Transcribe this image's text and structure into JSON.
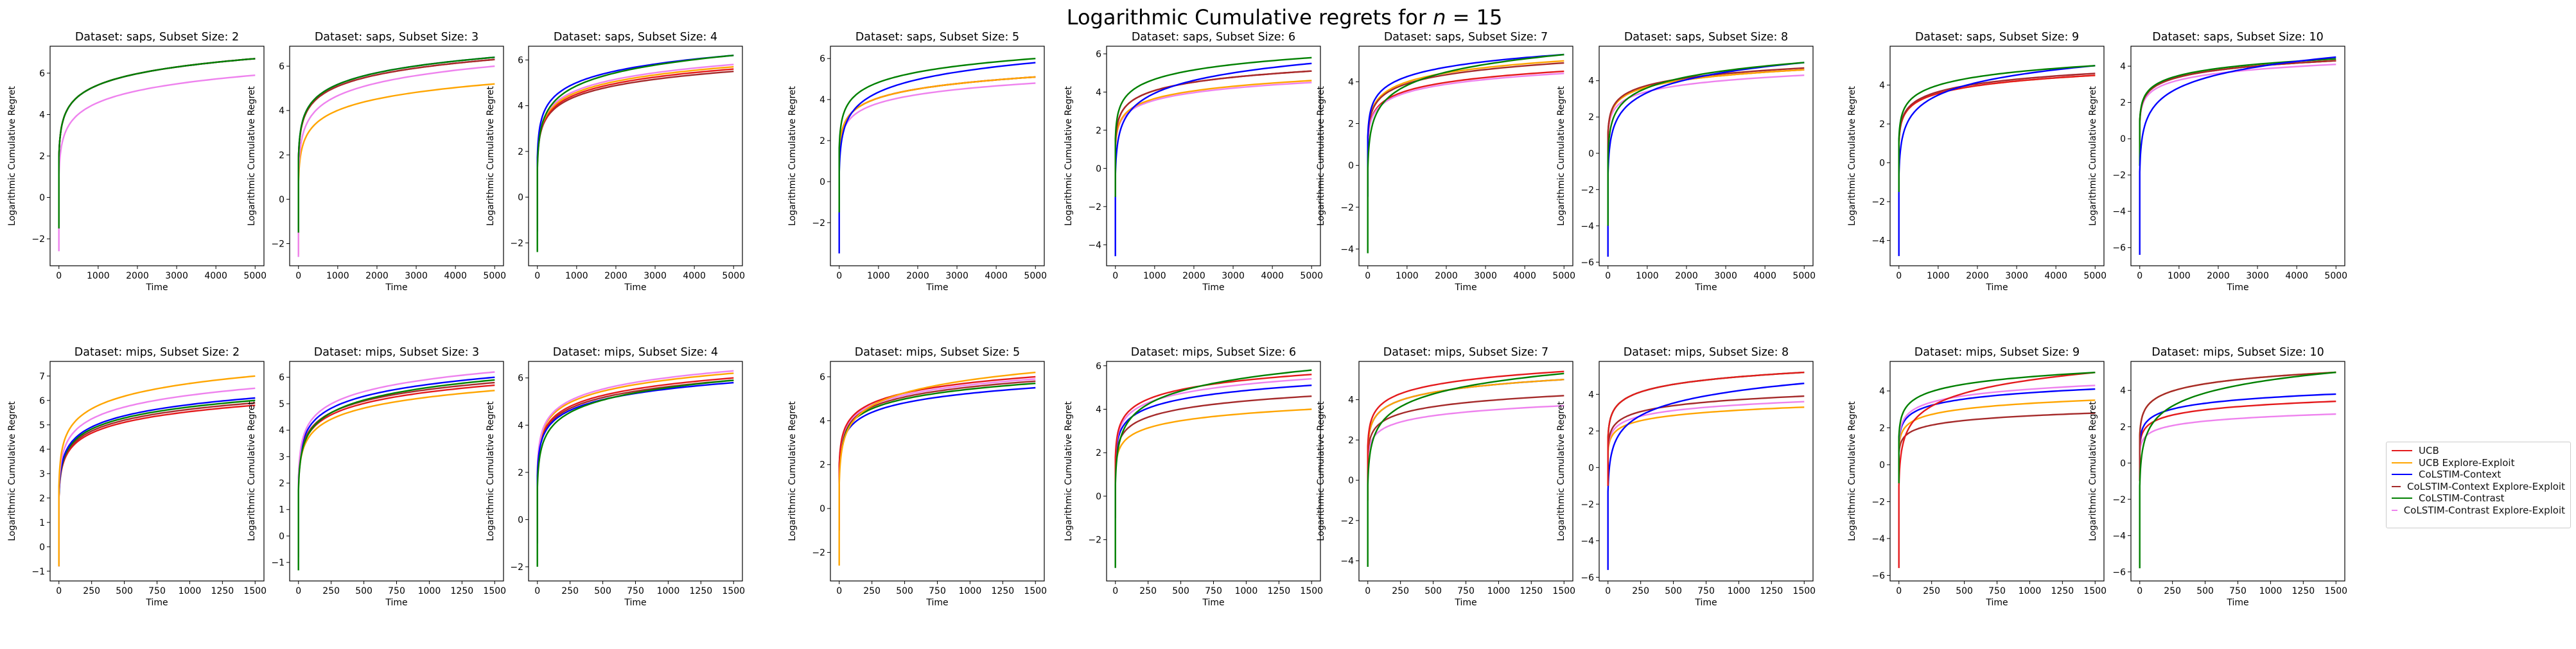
{
  "figure": {
    "title_prefix": "Logarithmic Cumulative regrets for ",
    "title_var": "n",
    "title_suffix": " = 15"
  },
  "legend": {
    "placement": "right",
    "entries": [
      {
        "key": "ucb",
        "label": "UCB",
        "color": "#e41a1c"
      },
      {
        "key": "ucb_ee",
        "label": "UCB Explore-Exploit",
        "color": "#ffa500"
      },
      {
        "key": "col_ctx",
        "label": "CoLSTIM-Context",
        "color": "#0000ff"
      },
      {
        "key": "col_ctx_ee",
        "label": "CoLSTIM-Context Explore-Exploit",
        "color": "#a52a2a"
      },
      {
        "key": "col_con",
        "label": "CoLSTIM-Contrast",
        "color": "#008000"
      },
      {
        "key": "col_con_ee",
        "label": "CoLSTIM-Contrast Explore-Exploit",
        "color": "#ee82ee"
      }
    ]
  },
  "chart_data": [
    {
      "type": "line",
      "title": "Dataset: saps, Subset Size: 2",
      "xlabel": "Time",
      "ylabel": "Logarithmic Cumulative Regret",
      "xlim": [
        0,
        5000
      ],
      "ylim": [
        -3.3,
        7.3
      ],
      "xticks": [
        0,
        1000,
        2000,
        3000,
        4000,
        5000
      ],
      "yticks": [
        -2,
        0,
        2,
        4,
        6
      ],
      "series": [
        {
          "key": "ucb",
          "end": 6.7,
          "start": -1.5
        },
        {
          "key": "ucb_ee",
          "end": 6.7,
          "start": -1.5
        },
        {
          "key": "col_ctx",
          "end": 6.7,
          "start": -1.5
        },
        {
          "key": "col_ctx_ee",
          "end": 6.7,
          "start": -1.5
        },
        {
          "key": "col_con_ee",
          "end": 5.9,
          "start": -2.6
        },
        {
          "key": "col_con",
          "end": 6.7,
          "start": -1.5
        }
      ]
    },
    {
      "type": "line",
      "title": "Dataset: saps, Subset Size: 3",
      "xlabel": "Time",
      "ylabel": "Logarithmic Cumulative Regret",
      "xlim": [
        0,
        5000
      ],
      "ylim": [
        -3.0,
        6.9
      ],
      "xticks": [
        0,
        1000,
        2000,
        3000,
        4000,
        5000
      ],
      "yticks": [
        -2,
        0,
        2,
        4,
        6
      ],
      "series": [
        {
          "key": "ucb_ee",
          "end": 5.2,
          "start": -2.5
        },
        {
          "key": "col_con_ee",
          "end": 6.0,
          "start": -2.6
        },
        {
          "key": "ucb",
          "end": 6.3,
          "start": -1.5
        },
        {
          "key": "col_ctx",
          "end": 6.4,
          "start": -1.5
        },
        {
          "key": "col_ctx_ee",
          "end": 6.3,
          "start": -1.5
        },
        {
          "key": "col_con",
          "end": 6.4,
          "start": -1.5
        }
      ]
    },
    {
      "type": "line",
      "title": "Dataset: saps, Subset Size: 4",
      "xlabel": "Time",
      "ylabel": "Logarithmic Cumulative Regret",
      "xlim": [
        0,
        5000
      ],
      "ylim": [
        -3.0,
        6.6
      ],
      "xticks": [
        0,
        1000,
        2000,
        3000,
        4000,
        5000
      ],
      "yticks": [
        -2,
        0,
        2,
        4,
        6
      ],
      "series": [
        {
          "key": "col_ctx_ee",
          "end": 5.5,
          "start": -1.5
        },
        {
          "key": "ucb",
          "end": 5.6,
          "start": -1.5
        },
        {
          "key": "ucb_ee",
          "end": 5.7,
          "start": -1.5
        },
        {
          "key": "col_con_ee",
          "end": 5.8,
          "start": -1.5
        },
        {
          "key": "col_ctx",
          "end": 6.2,
          "start": -1.5
        },
        {
          "key": "col_con",
          "end": 6.2,
          "start": -2.4
        }
      ]
    },
    {
      "type": "line",
      "title": "Dataset: saps, Subset Size: 5",
      "xlabel": "Time",
      "ylabel": "Logarithmic Cumulative Regret",
      "xlim": [
        0,
        5000
      ],
      "ylim": [
        -4.1,
        6.6
      ],
      "xticks": [
        0,
        1000,
        2000,
        3000,
        4000,
        5000
      ],
      "yticks": [
        -2,
        0,
        2,
        4,
        6
      ],
      "series": [
        {
          "key": "col_con_ee",
          "end": 4.8,
          "start": -1.5
        },
        {
          "key": "ucb",
          "end": 5.1,
          "start": -1.5
        },
        {
          "key": "col_ctx_ee",
          "end": 5.1,
          "start": -1.5
        },
        {
          "key": "ucb_ee",
          "end": 5.1,
          "start": -1.5
        },
        {
          "key": "col_ctx",
          "end": 5.8,
          "start": -3.5
        },
        {
          "key": "col_con",
          "end": 6.0,
          "start": -1.5
        }
      ]
    },
    {
      "type": "line",
      "title": "Dataset: saps, Subset Size: 6",
      "xlabel": "Time",
      "ylabel": "Logarithmic Cumulative Regret",
      "xlim": [
        0,
        5000
      ],
      "ylim": [
        -5.1,
        6.4
      ],
      "xticks": [
        0,
        1000,
        2000,
        3000,
        4000,
        5000
      ],
      "yticks": [
        -4,
        -2,
        0,
        2,
        4,
        6
      ],
      "series": [
        {
          "key": "col_con_ee",
          "end": 4.5,
          "start": -1.5
        },
        {
          "key": "ucb_ee",
          "end": 4.6,
          "start": -1.5
        },
        {
          "key": "ucb",
          "end": 5.1,
          "start": -1.5
        },
        {
          "key": "col_ctx_ee",
          "end": 5.1,
          "start": -1.5
        },
        {
          "key": "col_ctx",
          "end": 5.5,
          "start": -4.6
        },
        {
          "key": "col_con",
          "end": 5.8,
          "start": -1.5
        }
      ]
    },
    {
      "type": "line",
      "title": "Dataset: saps, Subset Size: 7",
      "xlabel": "Time",
      "ylabel": "Logarithmic Cumulative Regret",
      "xlim": [
        0,
        5000
      ],
      "ylim": [
        -4.8,
        5.7
      ],
      "xticks": [
        0,
        1000,
        2000,
        3000,
        4000,
        5000
      ],
      "yticks": [
        -4,
        -2,
        0,
        2,
        4
      ],
      "series": [
        {
          "key": "ucb",
          "end": 4.5,
          "start": -1.5
        },
        {
          "key": "col_con_ee",
          "end": 4.4,
          "start": -1.5
        },
        {
          "key": "ucb_ee",
          "end": 5.0,
          "start": -1.5
        },
        {
          "key": "col_ctx_ee",
          "end": 4.9,
          "start": -1.5
        },
        {
          "key": "col_ctx",
          "end": 5.3,
          "start": -1.5
        },
        {
          "key": "col_con",
          "end": 5.3,
          "start": -4.2
        }
      ]
    },
    {
      "type": "line",
      "title": "Dataset: saps, Subset Size: 8",
      "xlabel": "Time",
      "ylabel": "Logarithmic Cumulative Regret",
      "xlim": [
        0,
        5000
      ],
      "ylim": [
        -6.2,
        5.9
      ],
      "xticks": [
        0,
        1000,
        2000,
        3000,
        4000,
        5000
      ],
      "yticks": [
        -6,
        -4,
        -2,
        0,
        2,
        4
      ],
      "series": [
        {
          "key": "col_con_ee",
          "end": 4.3,
          "start": -1.5
        },
        {
          "key": "ucb",
          "end": 4.6,
          "start": -1.5
        },
        {
          "key": "ucb_ee",
          "end": 4.6,
          "start": -1.5
        },
        {
          "key": "col_ctx_ee",
          "end": 4.7,
          "start": -1.5
        },
        {
          "key": "col_ctx",
          "end": 5.0,
          "start": -5.7
        },
        {
          "key": "col_con",
          "end": 5.0,
          "start": -4.0
        }
      ]
    },
    {
      "type": "line",
      "title": "Dataset: saps, Subset Size: 9",
      "xlabel": "Time",
      "ylabel": "Logarithmic Cumulative Regret",
      "xlim": [
        0,
        5000
      ],
      "ylim": [
        -5.3,
        6.0
      ],
      "xticks": [
        0,
        1000,
        2000,
        3000,
        4000,
        5000
      ],
      "yticks": [
        -4,
        -2,
        0,
        2,
        4
      ],
      "series": [
        {
          "key": "ucb_ee",
          "end": 4.5,
          "start": -1.5
        },
        {
          "key": "col_con_ee",
          "end": 4.6,
          "start": -1.5
        },
        {
          "key": "ucb",
          "end": 4.5,
          "start": -1.5
        },
        {
          "key": "col_ctx_ee",
          "end": 4.6,
          "start": -1.5
        },
        {
          "key": "col_ctx",
          "end": 5.0,
          "start": -4.8
        },
        {
          "key": "col_con",
          "end": 5.0,
          "start": -1.5
        }
      ]
    },
    {
      "type": "line",
      "title": "Dataset: saps, Subset Size: 10",
      "xlabel": "Time",
      "ylabel": "Logarithmic Cumulative Regret",
      "xlim": [
        0,
        5000
      ],
      "ylim": [
        -7.0,
        5.1
      ],
      "xticks": [
        0,
        1000,
        2000,
        3000,
        4000,
        5000
      ],
      "yticks": [
        -6,
        -4,
        -2,
        0,
        2,
        4
      ],
      "series": [
        {
          "key": "col_con_ee",
          "end": 4.1,
          "start": -1.5
        },
        {
          "key": "ucb_ee",
          "end": 4.3,
          "start": -1.5
        },
        {
          "key": "ucb",
          "end": 4.3,
          "start": -1.5
        },
        {
          "key": "col_ctx_ee",
          "end": 4.3,
          "start": -1.5
        },
        {
          "key": "col_con",
          "end": 4.4,
          "start": -1.5
        },
        {
          "key": "col_ctx",
          "end": 4.5,
          "start": -6.4
        }
      ]
    },
    {
      "type": "line",
      "title": "Dataset: mips, Subset Size: 2",
      "xlabel": "Time",
      "ylabel": "Logarithmic Cumulative Regret",
      "xlim": [
        0,
        1500
      ],
      "ylim": [
        -1.4,
        7.6
      ],
      "xticks": [
        0,
        250,
        500,
        750,
        1000,
        1250,
        1500
      ],
      "yticks": [
        -1,
        0,
        1,
        2,
        3,
        4,
        5,
        6,
        7
      ],
      "series": [
        {
          "key": "ucb",
          "end": 5.8,
          "start": -0.8
        },
        {
          "key": "col_ctx_ee",
          "end": 5.9,
          "start": -0.8
        },
        {
          "key": "col_con",
          "end": 6.0,
          "start": -0.8
        },
        {
          "key": "col_ctx",
          "end": 6.1,
          "start": -0.8
        },
        {
          "key": "col_con_ee",
          "end": 6.5,
          "start": -0.8
        },
        {
          "key": "ucb_ee",
          "end": 7.0,
          "start": -0.8
        }
      ]
    },
    {
      "type": "line",
      "title": "Dataset: mips, Subset Size: 3",
      "xlabel": "Time",
      "ylabel": "Logarithmic Cumulative Regret",
      "xlim": [
        0,
        1500
      ],
      "ylim": [
        -1.7,
        6.6
      ],
      "xticks": [
        0,
        250,
        500,
        750,
        1000,
        1250,
        1500
      ],
      "yticks": [
        -1,
        0,
        1,
        2,
        3,
        4,
        5,
        6
      ],
      "series": [
        {
          "key": "ucb_ee",
          "end": 5.5,
          "start": -0.8
        },
        {
          "key": "ucb",
          "end": 5.7,
          "start": -0.8
        },
        {
          "key": "col_ctx_ee",
          "end": 5.8,
          "start": -0.8
        },
        {
          "key": "col_ctx",
          "end": 6.0,
          "start": -0.8
        },
        {
          "key": "col_con_ee",
          "end": 6.2,
          "start": -0.8
        },
        {
          "key": "col_con",
          "end": 5.9,
          "start": -1.3
        }
      ]
    },
    {
      "type": "line",
      "title": "Dataset: mips, Subset Size: 4",
      "xlabel": "Time",
      "ylabel": "Logarithmic Cumulative Regret",
      "xlim": [
        0,
        1500
      ],
      "ylim": [
        -2.6,
        6.7
      ],
      "xticks": [
        0,
        250,
        500,
        750,
        1000,
        1250,
        1500
      ],
      "yticks": [
        -2,
        0,
        2,
        4,
        6
      ],
      "series": [
        {
          "key": "col_ctx_ee",
          "end": 5.9,
          "start": -1.0
        },
        {
          "key": "ucb",
          "end": 6.0,
          "start": -1.0
        },
        {
          "key": "ucb_ee",
          "end": 6.2,
          "start": -1.0
        },
        {
          "key": "col_con_ee",
          "end": 6.3,
          "start": -1.0
        },
        {
          "key": "col_ctx",
          "end": 5.8,
          "start": -1.0
        },
        {
          "key": "col_con",
          "end": 5.9,
          "start": -2.0
        }
      ]
    },
    {
      "type": "line",
      "title": "Dataset: mips, Subset Size: 5",
      "xlabel": "Time",
      "ylabel": "Logarithmic Cumulative Regret",
      "xlim": [
        0,
        1500
      ],
      "ylim": [
        -3.3,
        6.7
      ],
      "xticks": [
        0,
        250,
        500,
        750,
        1000,
        1250,
        1500
      ],
      "yticks": [
        -2,
        0,
        2,
        4,
        6
      ],
      "series": [
        {
          "key": "col_ctx",
          "end": 5.5,
          "start": -1.0
        },
        {
          "key": "col_con",
          "end": 5.7,
          "start": -1.0
        },
        {
          "key": "col_ctx_ee",
          "end": 5.8,
          "start": -1.0
        },
        {
          "key": "col_con_ee",
          "end": 5.9,
          "start": -1.0
        },
        {
          "key": "ucb",
          "end": 6.0,
          "start": -1.0
        },
        {
          "key": "ucb_ee",
          "end": 6.2,
          "start": -2.6
        }
      ]
    },
    {
      "type": "line",
      "title": "Dataset: mips, Subset Size: 6",
      "xlabel": "Time",
      "ylabel": "Logarithmic Cumulative Regret",
      "xlim": [
        0,
        1500
      ],
      "ylim": [
        -3.9,
        6.2
      ],
      "xticks": [
        0,
        250,
        500,
        750,
        1000,
        1250,
        1500
      ],
      "yticks": [
        -2,
        0,
        2,
        4,
        6
      ],
      "series": [
        {
          "key": "ucb_ee",
          "end": 4.0,
          "start": -1.0
        },
        {
          "key": "col_ctx_ee",
          "end": 4.6,
          "start": -1.0
        },
        {
          "key": "col_ctx",
          "end": 5.1,
          "start": -1.0
        },
        {
          "key": "col_con_ee",
          "end": 5.4,
          "start": -1.0
        },
        {
          "key": "ucb",
          "end": 5.6,
          "start": -1.0
        },
        {
          "key": "col_con",
          "end": 5.8,
          "start": -3.3
        }
      ]
    },
    {
      "type": "line",
      "title": "Dataset: mips, Subset Size: 7",
      "xlabel": "Time",
      "ylabel": "Logarithmic Cumulative Regret",
      "xlim": [
        0,
        1500
      ],
      "ylim": [
        -5.0,
        5.9
      ],
      "xticks": [
        0,
        250,
        500,
        750,
        1000,
        1250,
        1500
      ],
      "yticks": [
        -4,
        -2,
        0,
        2,
        4
      ],
      "series": [
        {
          "key": "col_con_ee",
          "end": 3.7,
          "start": -1.0
        },
        {
          "key": "col_ctx_ee",
          "end": 4.2,
          "start": -1.0
        },
        {
          "key": "col_ctx",
          "end": 5.0,
          "start": -1.0
        },
        {
          "key": "ucb_ee",
          "end": 5.0,
          "start": -1.0
        },
        {
          "key": "ucb",
          "end": 5.4,
          "start": -1.0
        },
        {
          "key": "col_con",
          "end": 5.3,
          "start": -4.3
        }
      ]
    },
    {
      "type": "line",
      "title": "Dataset: mips, Subset Size: 8",
      "xlabel": "Time",
      "ylabel": "Logarithmic Cumulative Regret",
      "xlim": [
        0,
        1500
      ],
      "ylim": [
        -6.2,
        5.8
      ],
      "xticks": [
        0,
        250,
        500,
        750,
        1000,
        1250,
        1500
      ],
      "yticks": [
        -6,
        -4,
        -2,
        0,
        2,
        4
      ],
      "series": [
        {
          "key": "ucb_ee",
          "end": 3.3,
          "start": -1.0
        },
        {
          "key": "col_con_ee",
          "end": 3.6,
          "start": -1.0
        },
        {
          "key": "col_ctx_ee",
          "end": 3.9,
          "start": -1.0
        },
        {
          "key": "col_ctx",
          "end": 4.6,
          "start": -5.6
        },
        {
          "key": "col_con",
          "end": 5.2,
          "start": -1.0
        },
        {
          "key": "ucb",
          "end": 5.2,
          "start": -1.0
        }
      ]
    },
    {
      "type": "line",
      "title": "Dataset: mips, Subset Size: 9",
      "xlabel": "Time",
      "ylabel": "Logarithmic Cumulative Regret",
      "xlim": [
        0,
        1500
      ],
      "ylim": [
        -6.3,
        5.6
      ],
      "xticks": [
        0,
        250,
        500,
        750,
        1000,
        1250,
        1500
      ],
      "yticks": [
        -6,
        -4,
        -2,
        0,
        2,
        4
      ],
      "series": [
        {
          "key": "col_ctx_ee",
          "end": 2.8,
          "start": -1.0
        },
        {
          "key": "ucb_ee",
          "end": 3.5,
          "start": -1.0
        },
        {
          "key": "col_ctx",
          "end": 4.1,
          "start": -1.0
        },
        {
          "key": "col_con_ee",
          "end": 4.3,
          "start": -1.0
        },
        {
          "key": "ucb",
          "end": 5.0,
          "start": -5.6
        },
        {
          "key": "col_con",
          "end": 5.0,
          "start": -1.0
        }
      ]
    },
    {
      "type": "line",
      "title": "Dataset: mips, Subset Size: 10",
      "xlabel": "Time",
      "ylabel": "Logarithmic Cumulative Regret",
      "xlim": [
        0,
        1500
      ],
      "ylim": [
        -6.5,
        5.6
      ],
      "xticks": [
        0,
        250,
        500,
        750,
        1000,
        1250,
        1500
      ],
      "yticks": [
        -6,
        -4,
        -2,
        0,
        2,
        4
      ],
      "series": [
        {
          "key": "col_con_ee",
          "end": 2.7,
          "start": -1.0
        },
        {
          "key": "ucb",
          "end": 3.4,
          "start": -1.0
        },
        {
          "key": "col_ctx",
          "end": 3.8,
          "start": -1.0
        },
        {
          "key": "ucb_ee",
          "end": 5.0,
          "start": -1.0
        },
        {
          "key": "col_ctx_ee",
          "end": 5.0,
          "start": -1.0
        },
        {
          "key": "col_con",
          "end": 5.0,
          "start": -5.8
        }
      ]
    }
  ]
}
